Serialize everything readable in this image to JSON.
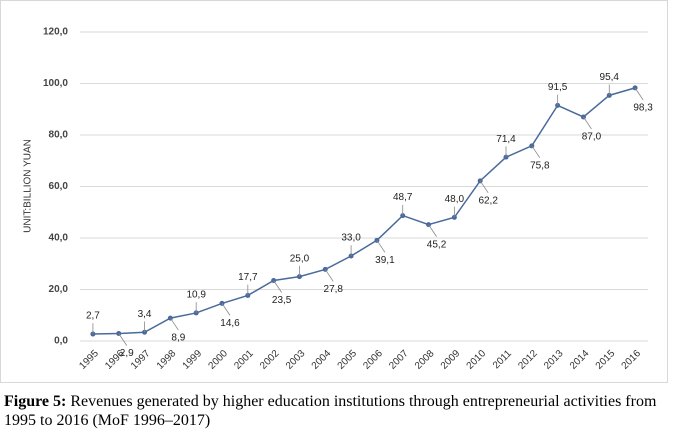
{
  "chart_data": {
    "type": "line",
    "y_label": "UNIT:BILLION YUAN",
    "categories": [
      "1995",
      "1996",
      "1997",
      "1998",
      "1999",
      "2000",
      "2001",
      "2002",
      "2003",
      "2004",
      "2005",
      "2006",
      "2007",
      "2008",
      "2009",
      "2010",
      "2011",
      "2012",
      "2013",
      "2014",
      "2015",
      "2016"
    ],
    "series": [
      {
        "name": "Revenues",
        "color": "#4a6a9c",
        "values": [
          2.7,
          2.9,
          3.4,
          8.9,
          10.9,
          14.6,
          17.7,
          23.5,
          25.0,
          27.8,
          33.0,
          39.1,
          48.7,
          45.2,
          48.0,
          62.2,
          71.4,
          75.8,
          91.5,
          87.0,
          95.4,
          98.3
        ],
        "value_labels": [
          "2,7",
          "2,9",
          "3,4",
          "8,9",
          "10,9",
          "14,6",
          "17,7",
          "23,5",
          "25,0",
          "27,8",
          "33,0",
          "39,1",
          "48,7",
          "45,2",
          "48,0",
          "62,2",
          "71,4",
          "75,8",
          "91,5",
          "87,0",
          "95,4",
          "98,3"
        ]
      }
    ],
    "ylim": [
      0,
      120
    ],
    "yticks": [
      {
        "value": 0,
        "label": "0,0"
      },
      {
        "value": 20,
        "label": "20,0"
      },
      {
        "value": 40,
        "label": "40,0"
      },
      {
        "value": 60,
        "label": "60,0"
      },
      {
        "value": 80,
        "label": "80,0"
      },
      {
        "value": 100,
        "label": "100,0"
      },
      {
        "value": 120,
        "label": "120,0"
      }
    ],
    "grid": true
  },
  "caption": {
    "label": "Figure 5:",
    "text": " Revenues generated by higher education institutions through entrepreneurial activities from 1995 to 2016 (MoF 1996–2017)"
  }
}
